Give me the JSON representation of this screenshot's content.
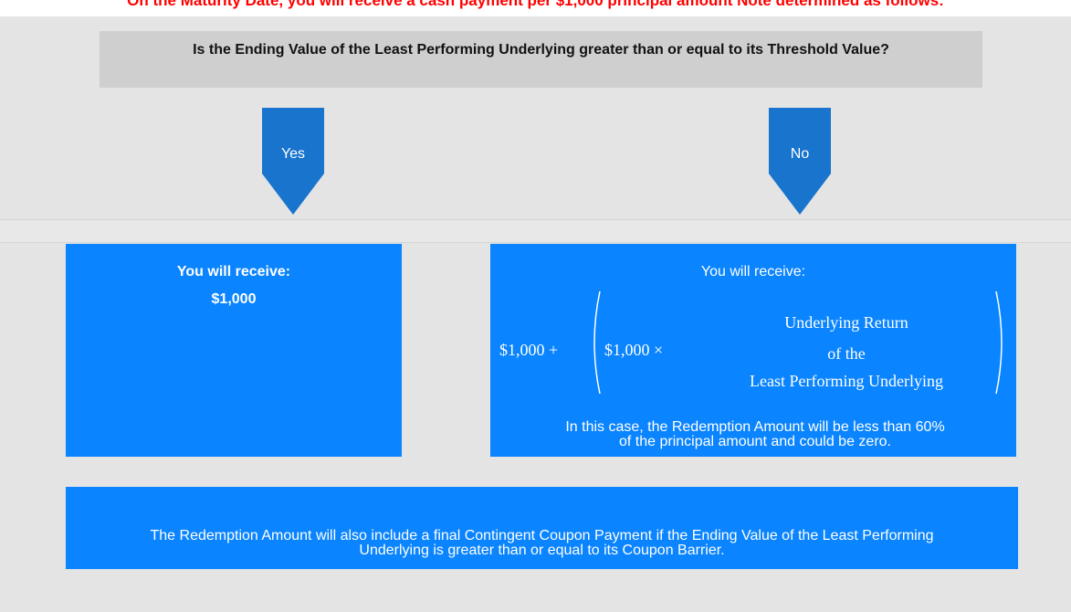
{
  "header": {
    "note": "On the Maturity Date, you will receive a cash payment per $1,000 principal amount Note determined as follows:"
  },
  "question": "Is the Ending Value of the Least Performing Underlying greater than or equal to its Threshold Value?",
  "branches": [
    {
      "label": "Yes",
      "receive": "You will receive:",
      "amount": "$1,000"
    },
    {
      "label": "No",
      "receive": "You will receive:",
      "formula": {
        "base": "$1,000 +",
        "factor": "$1,000 ×",
        "line1": "Underlying Return",
        "line2": "of the",
        "line3": "Least Performing Underlying"
      },
      "note": "In this case, the Redemption Amount will be less than 60% of the principal amount and could be zero."
    }
  ],
  "footer": "The Redemption Amount will also include a final Contingent Coupon Payment if the Ending Value of the Least Performing Underlying is greater than or equal to its Coupon Barrier."
}
